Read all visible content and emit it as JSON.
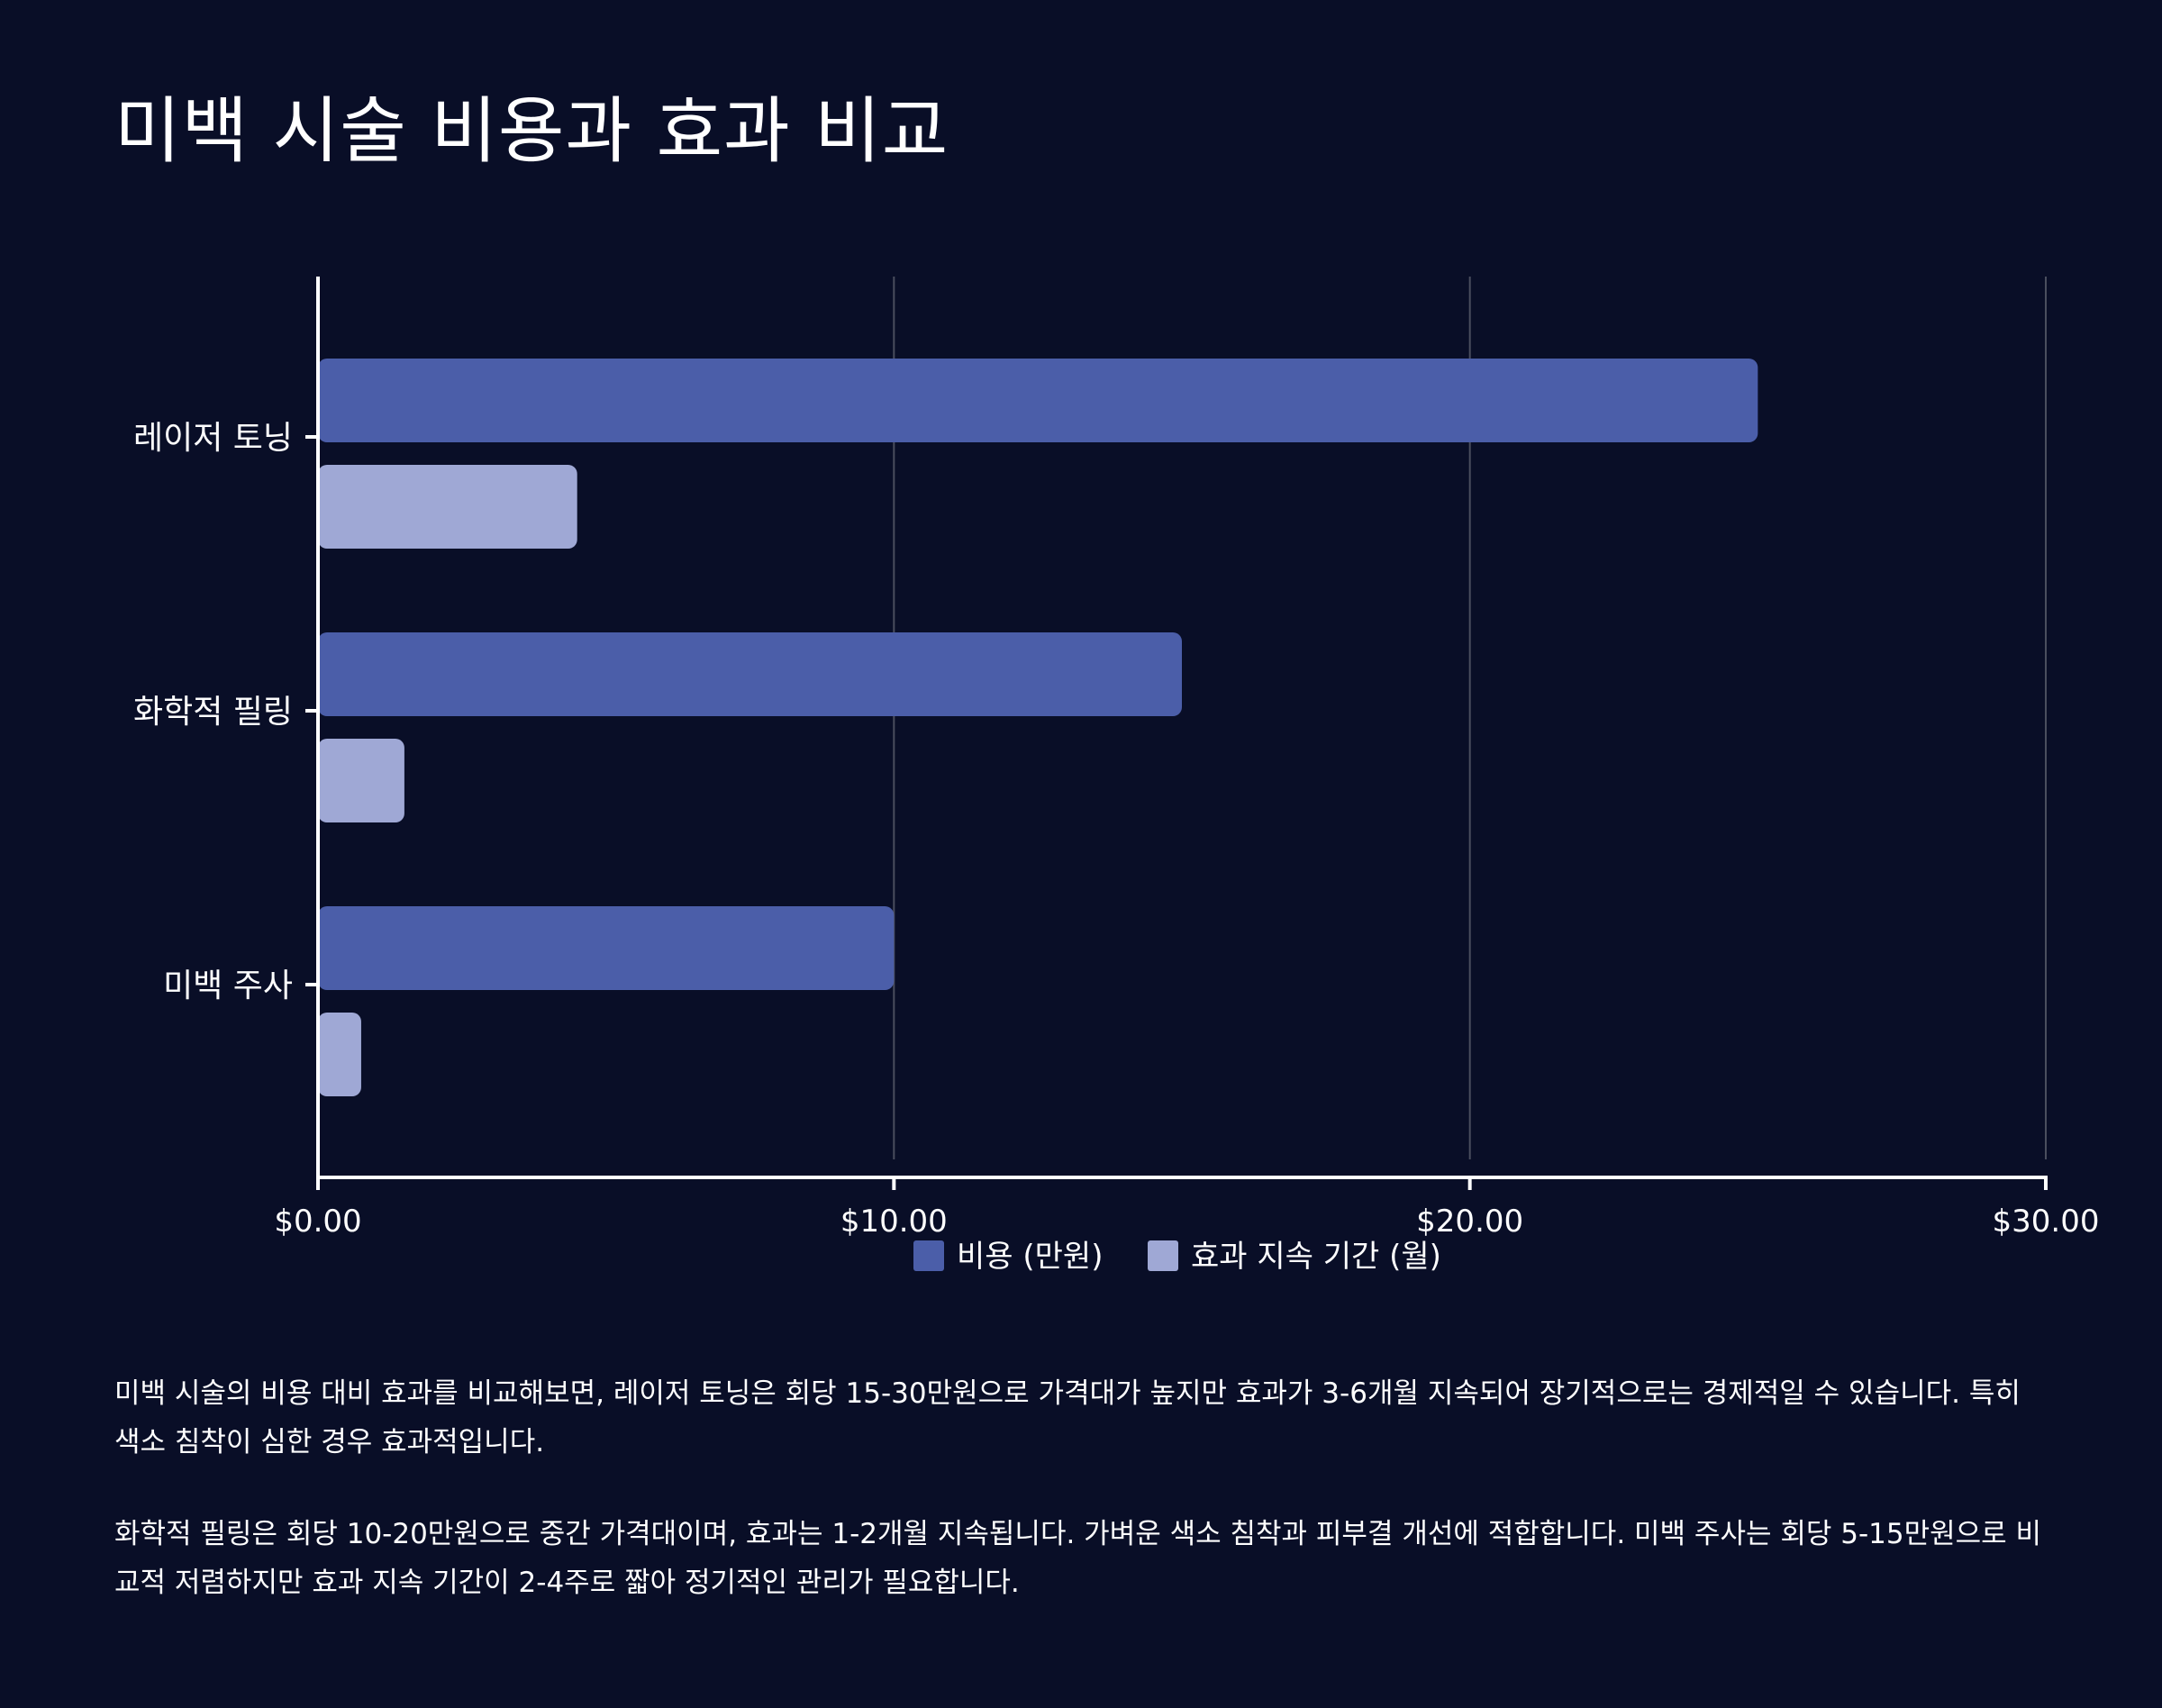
{
  "title": "미백 시술 비용과 효과 비교",
  "chart_data": {
    "type": "bar",
    "orientation": "horizontal",
    "categories": [
      "레이저 토닝",
      "화학적 필링",
      "미백 주사"
    ],
    "series": [
      {
        "name": "비용 (만원)",
        "values": [
          25,
          15,
          10
        ],
        "color": "#4b5ea9"
      },
      {
        "name": "효과 지속 기간 (월)",
        "values": [
          4.5,
          1.5,
          0.75
        ],
        "color": "#9fa8d5"
      }
    ],
    "xlim": [
      0,
      30
    ],
    "xticks": [
      0,
      10,
      20,
      30
    ],
    "xtick_labels": [
      "$0.00",
      "$10.00",
      "$20.00",
      "$30.00"
    ],
    "grid": true,
    "legend_position": "bottom"
  },
  "description": [
    "미백 시술의 비용 대비 효과를 비교해보면, 레이저 토닝은 회당 15-30만원으로 가격대가 높지만 효과가 3-6개월 지속되어 장기적으로는 경제적일 수 있습니다. 특히 색소 침착이 심한 경우 효과적입니다.",
    "화학적 필링은 회당 10-20만원으로 중간 가격대이며, 효과는 1-2개월 지속됩니다. 가벼운 색소 침착과 피부결 개선에 적합합니다. 미백 주사는 회당 5-15만원으로 비교적 저렴하지만 효과 지속 기간이 2-4주로 짧아 정기적인 관리가 필요합니다."
  ],
  "colors": {
    "background": "#090e27",
    "text": "#ffffff",
    "gridline": "#4a4e5e",
    "axis": "#ffffff"
  }
}
